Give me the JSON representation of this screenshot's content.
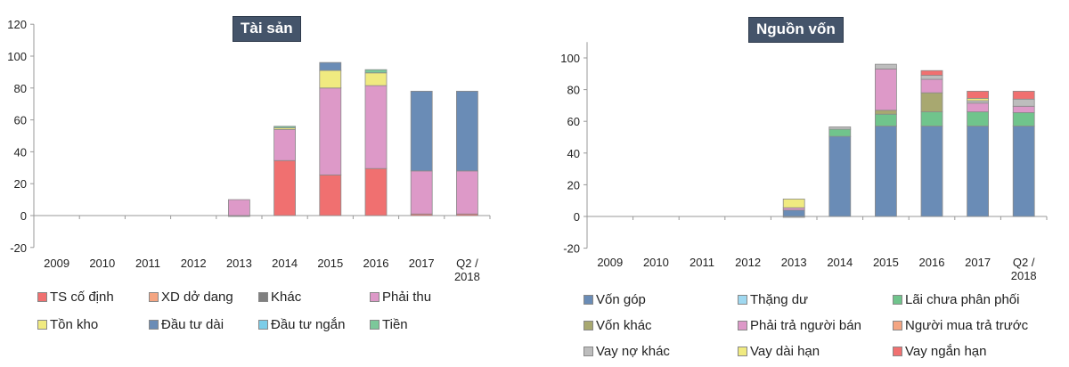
{
  "chart_data": [
    {
      "type": "bar",
      "stacked": true,
      "title": "Tài sản",
      "xlabel": "",
      "ylabel": "",
      "ylim": [
        -20,
        120
      ],
      "yticks": [
        -20,
        0,
        20,
        40,
        60,
        80,
        100,
        120
      ],
      "grid": false,
      "legend_position": "bottom",
      "categories": [
        "2009",
        "2010",
        "2011",
        "2012",
        "2013",
        "2014",
        "2015",
        "2016",
        "2017",
        "Q2 / 2018"
      ],
      "series": [
        {
          "name": "TS cố định",
          "color": "#f07070",
          "values": [
            0,
            0,
            0,
            0,
            0,
            34.5,
            25.5,
            29.5,
            1,
            1
          ]
        },
        {
          "name": "XD dở dang",
          "color": "#f4a582",
          "values": [
            0,
            0,
            0,
            0,
            0,
            0,
            0,
            0,
            0,
            0
          ]
        },
        {
          "name": "Khác",
          "color": "#808080",
          "values": [
            0,
            0,
            0,
            0,
            -0.5,
            0,
            0,
            0,
            0,
            0
          ]
        },
        {
          "name": "Phải thu",
          "color": "#dd99c8",
          "values": [
            0,
            0,
            0,
            0,
            10,
            19.5,
            54.5,
            52,
            27,
            27
          ]
        },
        {
          "name": "Tồn kho",
          "color": "#f0ea80",
          "values": [
            0,
            0,
            0,
            0,
            0,
            1,
            11,
            8,
            0,
            0
          ]
        },
        {
          "name": "Đầu tư dài",
          "color": "#6a8cb6",
          "values": [
            0,
            0,
            0,
            0,
            0,
            0,
            5,
            0,
            50,
            50
          ]
        },
        {
          "name": "Đầu tư ngắn",
          "color": "#7ccde8",
          "values": [
            0,
            0,
            0,
            0,
            0,
            0,
            0,
            0,
            0,
            0
          ]
        },
        {
          "name": "Tiền",
          "color": "#7cc89a",
          "values": [
            0,
            0,
            0,
            0,
            0,
            1,
            0,
            2,
            0,
            0
          ]
        }
      ]
    },
    {
      "type": "bar",
      "stacked": true,
      "title": "Nguồn vốn",
      "xlabel": "",
      "ylabel": "",
      "ylim": [
        -20,
        110
      ],
      "yticks": [
        -20,
        0,
        20,
        40,
        60,
        80,
        100
      ],
      "grid": false,
      "legend_position": "bottom",
      "categories": [
        "2009",
        "2010",
        "2011",
        "2012",
        "2013",
        "2014",
        "2015",
        "2016",
        "2017",
        "Q2 / 2018"
      ],
      "series": [
        {
          "name": "Vốn góp",
          "color": "#6a8cb6",
          "values": [
            0,
            0,
            0,
            0,
            4,
            50.5,
            57,
            57,
            57,
            57
          ]
        },
        {
          "name": "Thặng dư",
          "color": "#9fd8f0",
          "values": [
            0,
            0,
            0,
            0,
            0,
            0,
            0,
            0,
            0,
            0
          ]
        },
        {
          "name": "Lãi chưa phân phối",
          "color": "#70c48c",
          "values": [
            0,
            0,
            0,
            0,
            0,
            4.5,
            7.5,
            9,
            9,
            8.5
          ]
        },
        {
          "name": "Vốn khác",
          "color": "#a8a870",
          "values": [
            0,
            0,
            0,
            0,
            0,
            0,
            2.5,
            12,
            0,
            0
          ]
        },
        {
          "name": "Phải trả người bán",
          "color": "#dd99c8",
          "values": [
            0,
            0,
            0,
            0,
            1.5,
            0,
            26,
            8.5,
            5.5,
            4
          ]
        },
        {
          "name": "Người mua trả trước",
          "color": "#f4a582",
          "values": [
            0,
            0,
            0,
            0,
            0,
            0,
            0,
            0,
            0,
            0
          ]
        },
        {
          "name": "Vay nợ khác",
          "color": "#bdbdbd",
          "values": [
            0,
            0,
            0,
            0,
            -0.5,
            1.5,
            3,
            2.5,
            1.5,
            4.5
          ]
        },
        {
          "name": "Vay dài hạn",
          "color": "#f0ea80",
          "values": [
            0,
            0,
            0,
            0,
            5.5,
            0,
            0,
            0,
            1.5,
            0
          ]
        },
        {
          "name": "Vay ngắn hạn",
          "color": "#f07070",
          "values": [
            0,
            0,
            0,
            0,
            0,
            0,
            0,
            3,
            4.5,
            5
          ]
        }
      ]
    }
  ]
}
